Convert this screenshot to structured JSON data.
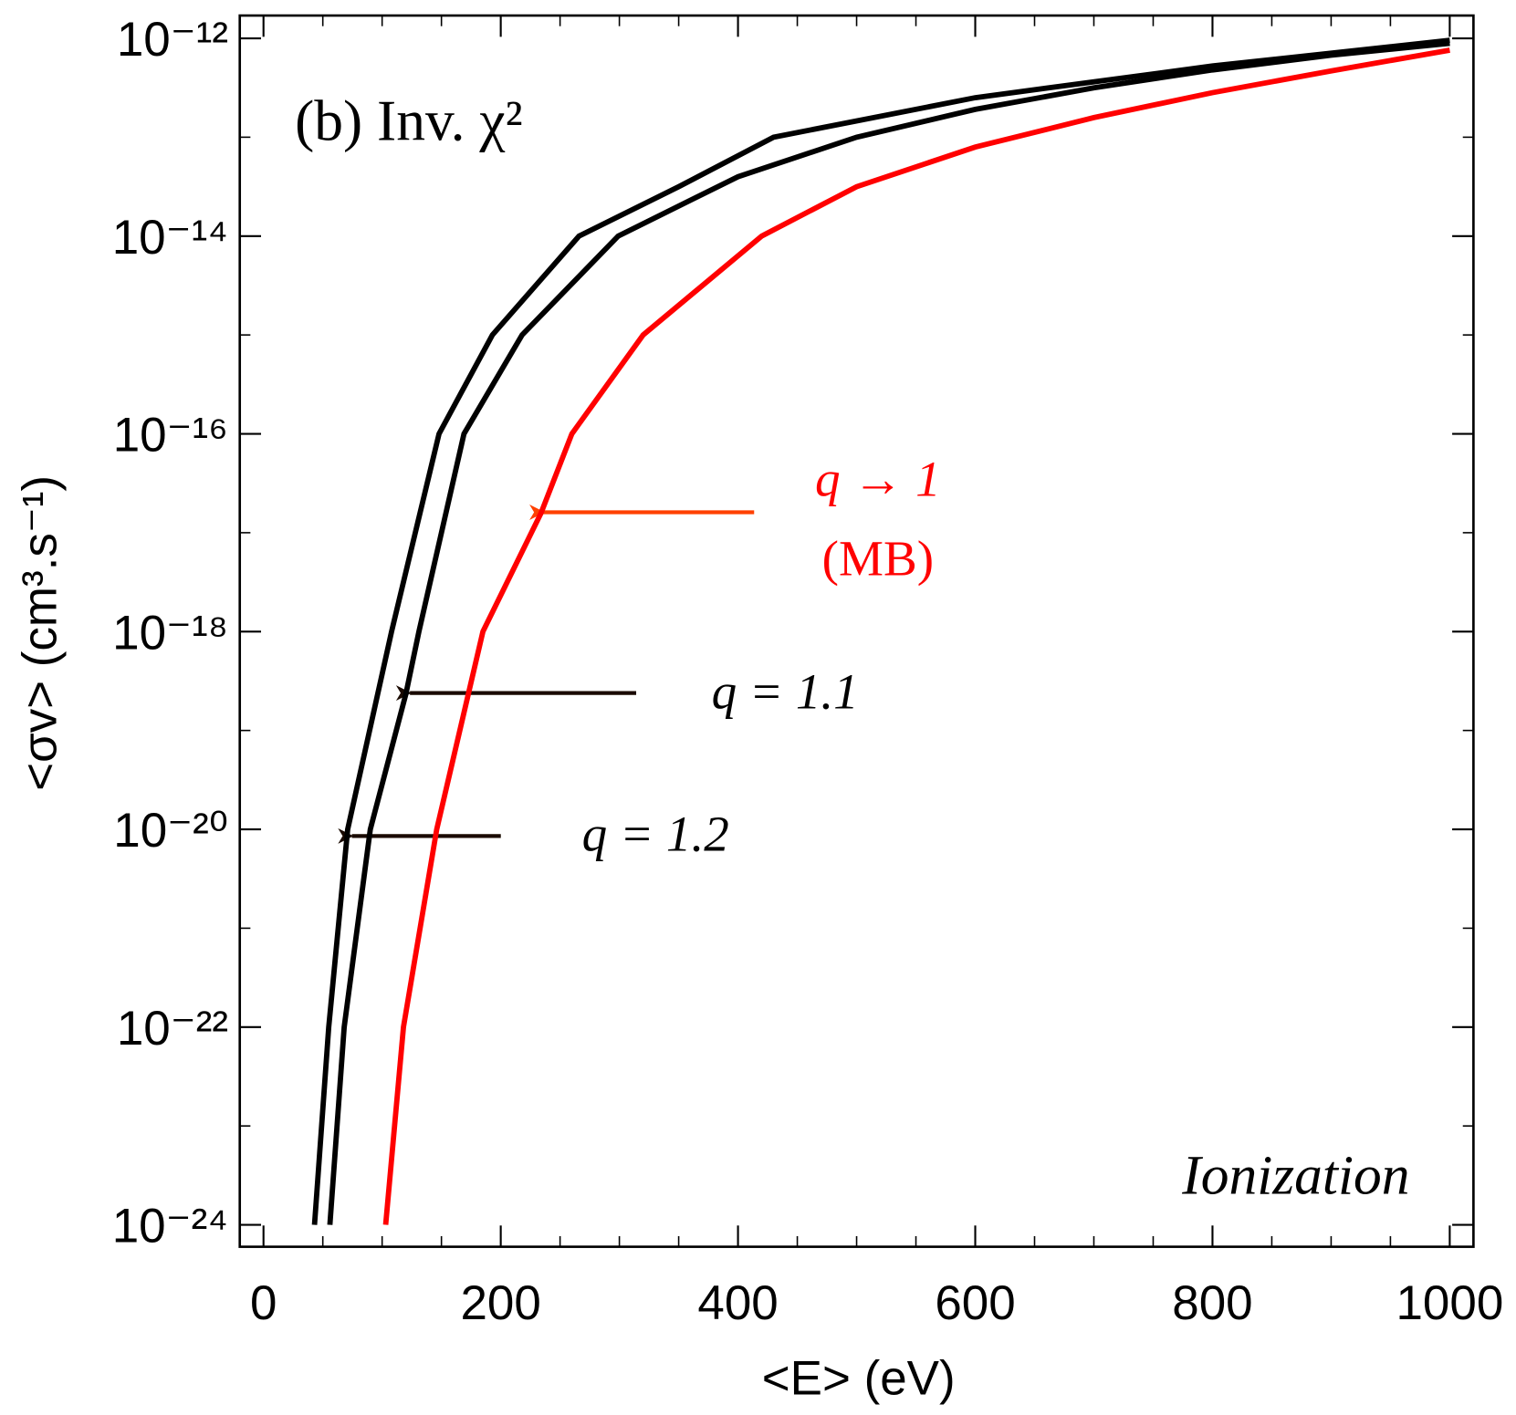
{
  "chart_data": {
    "type": "line",
    "title": "(b)  Inv. χ²",
    "annotation": "Ionization",
    "note": "(MB)",
    "x_label": "<E> (eV)",
    "y_label": "<σv> (cm³.s⁻¹)",
    "log_y": true,
    "xlim": [
      -20,
      1020
    ],
    "ylim": [
      6e-25,
      1.7e-12
    ],
    "xticks": [
      0,
      200,
      400,
      600,
      800,
      1000
    ],
    "xminorticks": [
      50,
      100,
      150,
      250,
      300,
      350,
      450,
      500,
      550,
      650,
      700,
      750,
      850,
      900,
      950
    ],
    "yticks": [
      {
        "value": 1e-24,
        "label": "10⁻²⁴"
      },
      {
        "value": 1e-22,
        "label": "10⁻²²"
      },
      {
        "value": 1e-20,
        "label": "10⁻²⁰"
      },
      {
        "value": 1e-18,
        "label": "10⁻¹⁸"
      },
      {
        "value": 1e-16,
        "label": "10⁻¹⁶"
      },
      {
        "value": 1e-14,
        "label": "10⁻¹⁴"
      },
      {
        "value": 1e-12,
        "label": "10⁻¹²"
      }
    ],
    "yminorticks": [
      1e-23,
      1e-21,
      1e-19,
      1e-17,
      1e-15,
      1e-13
    ],
    "series": [
      {
        "name": "q → 1",
        "color": "#ff0000",
        "x": [
          103,
          118,
          146,
          185,
          234,
          260,
          320,
          420,
          500,
          600,
          700,
          800,
          900,
          1000
        ],
        "values": [
          1e-24,
          1e-22,
          1e-20,
          1e-18,
          1.58e-17,
          1e-16,
          1e-15,
          1e-14,
          3.16e-14,
          7.94e-14,
          1.58e-13,
          2.82e-13,
          4.68e-13,
          7.59e-13
        ]
      },
      {
        "name": "q = 1.1",
        "color": "#000000",
        "x": [
          56,
          68,
          90,
          120,
          131,
          169,
          218,
          299,
          400,
          500,
          600,
          700,
          800,
          900,
          1000
        ],
        "values": [
          1e-24,
          1e-22,
          1e-20,
          2.34e-19,
          1e-18,
          1e-16,
          1e-15,
          1e-14,
          3.98e-14,
          1e-13,
          1.91e-13,
          3.16e-13,
          4.79e-13,
          6.76e-13,
          8.91e-13
        ]
      },
      {
        "name": "q = 1.2",
        "color": "#000000",
        "x": [
          43,
          55,
          71,
          108,
          148,
          193,
          266,
          350,
          430,
          600,
          800,
          1000
        ],
        "values": [
          1e-24,
          1e-22,
          1e-20,
          1e-18,
          1e-16,
          1e-15,
          1e-14,
          3.16e-14,
          1e-13,
          2.51e-13,
          5.25e-13,
          9.55e-13
        ]
      }
    ]
  }
}
